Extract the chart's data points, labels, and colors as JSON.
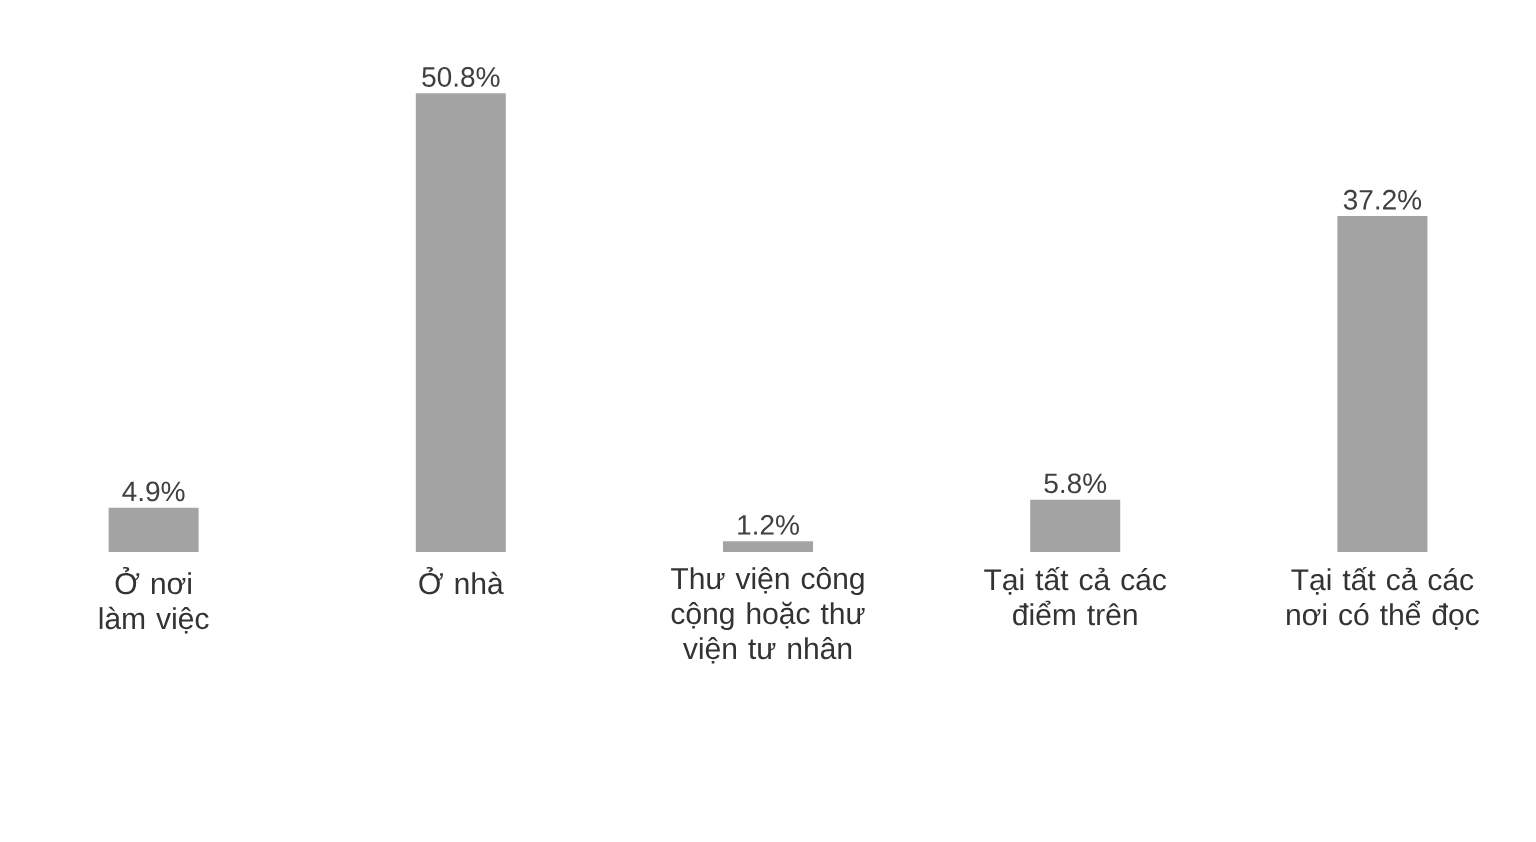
{
  "chart_data": {
    "type": "bar",
    "categories": [
      "Ở nơi làm việc",
      "Ở nhà",
      "Thư viện công cộng hoặc thư viện tư nhân",
      "Tại tất cả các điểm trên",
      "Tại tất cả các nơi có thể đọc"
    ],
    "values": [
      4.9,
      50.8,
      1.2,
      5.8,
      37.2
    ],
    "value_labels": [
      "4.9%",
      "50.8%",
      "1.2%",
      "5.8%",
      "37.2%"
    ],
    "color": "#a3a3a3"
  }
}
